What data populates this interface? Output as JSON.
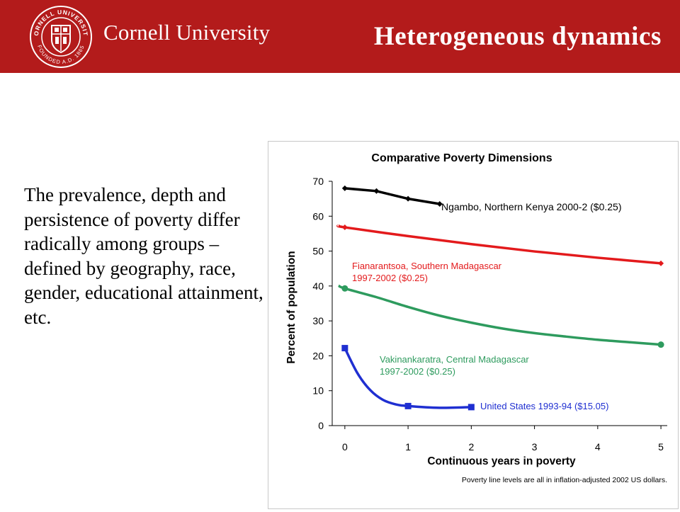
{
  "header": {
    "brand": "Cornell University",
    "seal_text": "CORNELL UNIVERSITY · FOUNDED A.D. 1865",
    "slide_title": "Heterogeneous dynamics",
    "bg_color": "#b31b1b"
  },
  "body": {
    "paragraph": "The prevalence, depth and persistence of poverty differ radically among groups – defined by geography, race, gender, educational attainment, etc."
  },
  "chart_data": {
    "type": "line",
    "title": "Comparative Poverty Dimensions",
    "xlabel": "Continuous years in poverty",
    "ylabel": "Percent of population",
    "xlim": [
      -0.2,
      5.1
    ],
    "ylim": [
      0,
      70
    ],
    "xticks": [
      0,
      1,
      2,
      3,
      4,
      5
    ],
    "yticks": [
      0,
      10,
      20,
      30,
      40,
      50,
      60,
      70
    ],
    "grid": false,
    "footnote": "Poverty line levels are all in inflation-adjusted 2002 US dollars.",
    "series": [
      {
        "name": "Ngambo, Northern Kenya 2000-2 ($0.25)",
        "label_lines": [
          "Ngambo, Northern Kenya 2000-2 ($0.25)"
        ],
        "color": "#000000",
        "marker": "diamond",
        "points": [
          [
            0,
            68
          ],
          [
            0.5,
            67.2
          ],
          [
            1,
            65
          ],
          [
            1.5,
            63.5
          ]
        ],
        "curve": [
          [
            0,
            68
          ],
          [
            0.5,
            67.2
          ],
          [
            1,
            65
          ],
          [
            1.5,
            63.5
          ]
        ]
      },
      {
        "name": "Fianarantsoa, Southern Madagascar 1997-2002 ($0.25)",
        "label_lines": [
          "Fianarantsoa, Southern Madagascar",
          "1997-2002 ($0.25)"
        ],
        "color": "#e31a1c",
        "marker": "diamond",
        "points": [
          [
            0,
            56.8
          ],
          [
            5,
            46.5
          ]
        ],
        "curve": [
          [
            -0.1,
            57.3
          ],
          [
            0,
            56.8
          ],
          [
            1,
            54.3
          ],
          [
            2,
            52
          ],
          [
            3,
            49.9
          ],
          [
            4,
            48.1
          ],
          [
            5,
            46.5
          ]
        ]
      },
      {
        "name": "Vakinankaratra, Central Madagascar 1997-2002 ($0.25)",
        "label_lines": [
          "Vakinankaratra, Central Madagascar",
          "1997-2002 ($0.25)"
        ],
        "color": "#2e9b5e",
        "marker": "circle",
        "points": [
          [
            0,
            39.3
          ],
          [
            5,
            23.2
          ]
        ],
        "curve": [
          [
            -0.1,
            40.1
          ],
          [
            0,
            39.3
          ],
          [
            0.5,
            36.8
          ],
          [
            1,
            34
          ],
          [
            1.5,
            31.5
          ],
          [
            2,
            29.5
          ],
          [
            2.5,
            27.8
          ],
          [
            3,
            26.5
          ],
          [
            3.5,
            25.5
          ],
          [
            4,
            24.6
          ],
          [
            4.5,
            23.9
          ],
          [
            5,
            23.2
          ]
        ]
      },
      {
        "name": "United States 1993-94 ($15.05)",
        "label_lines": [
          "United States 1993-94 ($15.05)"
        ],
        "color": "#1f2fd1",
        "marker": "square",
        "points": [
          [
            0,
            22.2
          ],
          [
            1,
            5.6
          ],
          [
            2,
            5.3
          ]
        ],
        "curve": [
          [
            0,
            22.2
          ],
          [
            0.2,
            15
          ],
          [
            0.4,
            10.2
          ],
          [
            0.6,
            7.4
          ],
          [
            0.8,
            6.1
          ],
          [
            1,
            5.6
          ],
          [
            1.5,
            5.1
          ],
          [
            2,
            5.3
          ]
        ]
      }
    ]
  }
}
